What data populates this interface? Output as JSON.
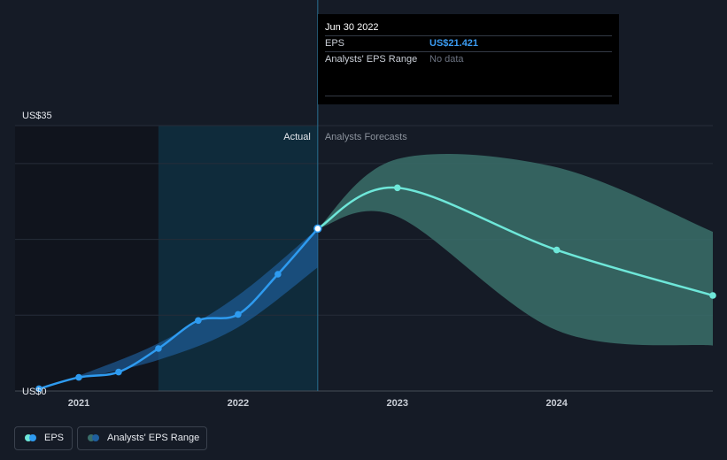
{
  "chart_data": {
    "type": "line",
    "y_ticks": [
      "US$0",
      "US$35"
    ],
    "ylim": [
      0,
      35
    ],
    "x_ticks": [
      {
        "label": "2021",
        "x": 2021.0
      },
      {
        "label": "2022",
        "x": 2022.0
      },
      {
        "label": "2023",
        "x": 2023.0
      },
      {
        "label": "2024",
        "x": 2024.0
      }
    ],
    "xlim": [
      2020.6,
      2024.98
    ],
    "region_labels": {
      "actual": "Actual",
      "forecast": "Analysts Forecasts"
    },
    "divider_x": 2022.5,
    "shade_start_x": 2021.5,
    "eps_actual": [
      {
        "x": 2020.75,
        "y": 0.3
      },
      {
        "x": 2021.0,
        "y": 1.8
      },
      {
        "x": 2021.25,
        "y": 2.5
      },
      {
        "x": 2021.5,
        "y": 5.6
      },
      {
        "x": 2021.75,
        "y": 9.3
      },
      {
        "x": 2022.0,
        "y": 10.1
      },
      {
        "x": 2022.25,
        "y": 15.4
      },
      {
        "x": 2022.5,
        "y": 21.421
      }
    ],
    "eps_forecast": [
      {
        "x": 2022.5,
        "y": 21.421
      },
      {
        "x": 2023.0,
        "y": 26.8
      },
      {
        "x": 2024.0,
        "y": 18.6
      },
      {
        "x": 2024.98,
        "y": 12.6
      }
    ],
    "range_actual_upper": [
      {
        "x": 2021.0,
        "y": 2.0
      },
      {
        "x": 2021.5,
        "y": 6.3
      },
      {
        "x": 2022.0,
        "y": 12.6
      },
      {
        "x": 2022.5,
        "y": 21.421
      }
    ],
    "range_actual_lower": [
      {
        "x": 2021.0,
        "y": 1.6
      },
      {
        "x": 2021.5,
        "y": 4.1
      },
      {
        "x": 2022.0,
        "y": 8.4
      },
      {
        "x": 2022.5,
        "y": 16.3
      }
    ],
    "range_forecast_upper": [
      {
        "x": 2022.5,
        "y": 21.421
      },
      {
        "x": 2023.0,
        "y": 30.6
      },
      {
        "x": 2024.0,
        "y": 29.5
      },
      {
        "x": 2024.98,
        "y": 21.0
      }
    ],
    "range_forecast_lower": [
      {
        "x": 2022.5,
        "y": 21.421
      },
      {
        "x": 2023.0,
        "y": 23.0
      },
      {
        "x": 2024.0,
        "y": 8.0
      },
      {
        "x": 2024.98,
        "y": 6.0
      }
    ],
    "colors": {
      "eps_actual": "#2e9bf0",
      "eps_forecast": "#6ee7d9",
      "range_actual": "#1f5f9e",
      "range_forecast": "#3a6e6a"
    }
  },
  "tooltip": {
    "date": "Jun 30 2022",
    "eps_label": "EPS",
    "eps_value": "US$21.421",
    "range_label": "Analysts' EPS Range",
    "range_value": "No data",
    "eps_value_color": "#3b9cf2",
    "range_value_color": "#6b7280"
  },
  "legend": {
    "eps": "EPS",
    "range": "Analysts' EPS Range"
  }
}
